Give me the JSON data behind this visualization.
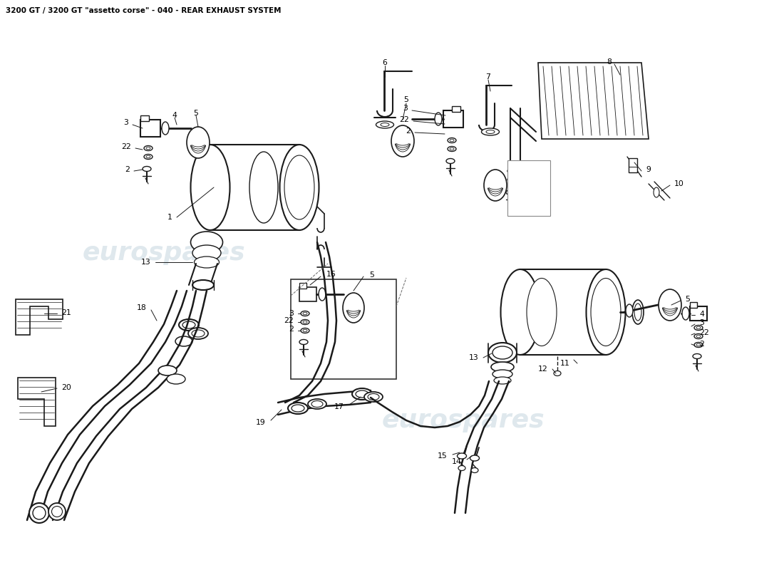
{
  "title": "3200 GT / 3200 GT \"assetto corse\" - 040 - REAR EXHAUST SYSTEM",
  "title_fontsize": 7.5,
  "bg_color": "#ffffff",
  "line_color": "#1a1a1a",
  "watermark_text": "eurospares",
  "watermark_color": "#b8ccd8",
  "watermark_alpha": 0.45
}
